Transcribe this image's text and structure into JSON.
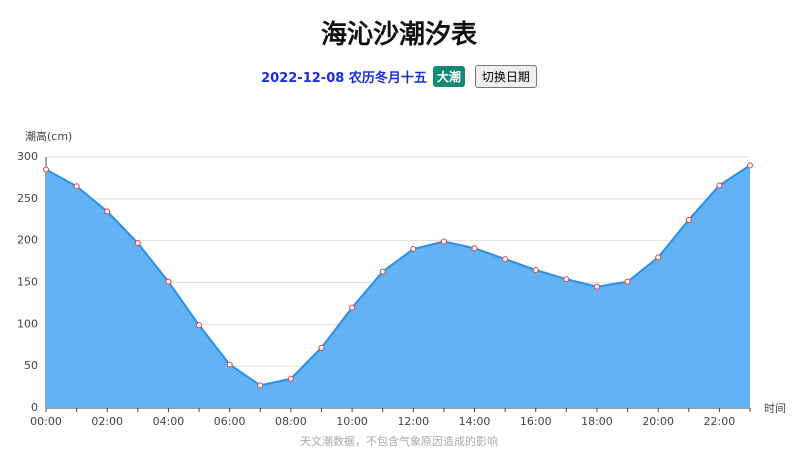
{
  "header": {
    "title": "海沁沙潮汐表",
    "date": "2022-12-08",
    "lunar": "农历冬月十五",
    "badge": "大潮",
    "button": "切换日期"
  },
  "chart_data": {
    "type": "line",
    "area": true,
    "y_label": "潮高(cm)",
    "x_label": "时间",
    "note": "天文潮数据，不包含气象原因造成的影响",
    "categories": [
      "00:00",
      null,
      "02:00",
      null,
      "04:00",
      null,
      "06:00",
      null,
      "08:00",
      null,
      "10:00",
      null,
      "12:00",
      null,
      "14:00",
      null,
      "16:00",
      null,
      "18:00",
      null,
      "20:00",
      null,
      "22:00",
      null
    ],
    "series": [
      {
        "name": "潮高",
        "color": "#2b8fe3",
        "fill": "#62b2f5",
        "marker_color": "#e0403a",
        "values": [
          285,
          265,
          235,
          197,
          151,
          99,
          52,
          27,
          35,
          72,
          120,
          163,
          190,
          199,
          191,
          178,
          165,
          154,
          145,
          151,
          180,
          225,
          266,
          290
        ]
      }
    ],
    "ylim": [
      0,
      300
    ],
    "yticks": [
      0,
      50,
      100,
      150,
      200,
      250,
      300
    ],
    "grid": true
  }
}
